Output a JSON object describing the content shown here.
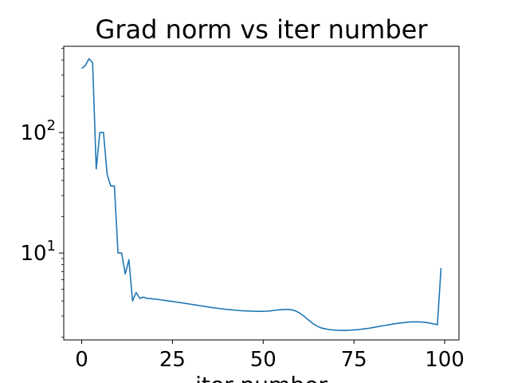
{
  "chart_data": {
    "type": "line",
    "title": "Grad norm vs iter number",
    "xlabel": "iter number",
    "ylabel": "",
    "yscale": "log",
    "xlim": [
      -4.95,
      103.95
    ],
    "ylim": [
      1.9,
      520
    ],
    "grid": false,
    "x_ticks": [
      0,
      25,
      50,
      75,
      100
    ],
    "x_tick_labels": [
      "0",
      "25",
      "50",
      "75",
      "100"
    ],
    "y_major_ticks": [
      10,
      100
    ],
    "y_major_tick_labels": [
      {
        "base": "10",
        "exp": "1"
      },
      {
        "base": "10",
        "exp": "2"
      }
    ],
    "y_minor_ticks": [
      2,
      3,
      4,
      5,
      6,
      7,
      8,
      9,
      20,
      30,
      40,
      50,
      60,
      70,
      80,
      90,
      200,
      300,
      400,
      500
    ],
    "series": [
      {
        "color": "#1f77b4",
        "x": [
          0,
          1,
          2,
          3,
          4,
          5,
          6,
          7,
          8,
          9,
          10,
          11,
          12,
          13,
          14,
          15,
          16,
          17,
          18,
          19,
          20,
          21,
          22,
          23,
          24,
          25,
          26,
          27,
          28,
          29,
          30,
          31,
          32,
          33,
          34,
          35,
          36,
          37,
          38,
          39,
          40,
          41,
          42,
          43,
          44,
          45,
          46,
          47,
          48,
          49,
          50,
          51,
          52,
          53,
          54,
          55,
          56,
          57,
          58,
          59,
          60,
          61,
          62,
          63,
          64,
          65,
          66,
          67,
          68,
          69,
          70,
          71,
          72,
          73,
          74,
          75,
          76,
          77,
          78,
          79,
          80,
          81,
          82,
          83,
          84,
          85,
          86,
          87,
          88,
          89,
          90,
          91,
          92,
          93,
          94,
          95,
          96,
          97,
          98,
          99
        ],
        "y": [
          340,
          360,
          410,
          380,
          50,
          100,
          100,
          45,
          36,
          36,
          10,
          10,
          6.7,
          8.8,
          4.0,
          4.7,
          4.2,
          4.3,
          4.2,
          4.18,
          4.15,
          4.12,
          4.08,
          4.04,
          4.0,
          3.96,
          3.92,
          3.88,
          3.84,
          3.8,
          3.76,
          3.72,
          3.68,
          3.64,
          3.6,
          3.56,
          3.52,
          3.49,
          3.46,
          3.43,
          3.4,
          3.38,
          3.36,
          3.34,
          3.32,
          3.31,
          3.3,
          3.29,
          3.28,
          3.28,
          3.28,
          3.29,
          3.31,
          3.34,
          3.37,
          3.39,
          3.4,
          3.4,
          3.37,
          3.3,
          3.18,
          3.03,
          2.86,
          2.7,
          2.56,
          2.46,
          2.39,
          2.35,
          2.32,
          2.3,
          2.29,
          2.28,
          2.28,
          2.28,
          2.29,
          2.3,
          2.31,
          2.33,
          2.35,
          2.37,
          2.4,
          2.43,
          2.46,
          2.49,
          2.52,
          2.55,
          2.58,
          2.61,
          2.63,
          2.65,
          2.67,
          2.68,
          2.68,
          2.68,
          2.67,
          2.65,
          2.62,
          2.58,
          2.54,
          7.5
        ]
      }
    ]
  }
}
